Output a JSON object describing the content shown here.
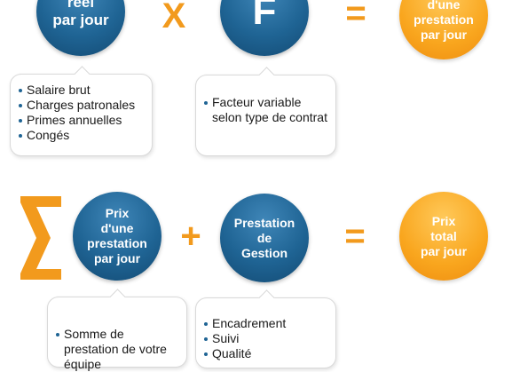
{
  "row1": {
    "circle1": {
      "lines": [
        "réel",
        "par jour"
      ]
    },
    "op_times": "X",
    "circle2": {
      "text": "F"
    },
    "op_equals": "=",
    "circle3": {
      "lines": [
        "d'une",
        "prestation",
        "par jour"
      ]
    },
    "callout1": [
      "Salaire brut",
      "Charges patronales",
      "Primes annuelles",
      "Congés"
    ],
    "callout2": [
      "Facteur variable selon type de contrat"
    ]
  },
  "row2": {
    "sigma": "Σ",
    "circle1": {
      "lines": [
        "Prix",
        "d'une",
        "prestation",
        "par jour"
      ]
    },
    "op_plus": "+",
    "circle2": {
      "lines": [
        "Prestation",
        "de",
        "Gestion"
      ]
    },
    "op_equals": "=",
    "circle3": {
      "lines": [
        "Prix",
        "total",
        "par jour"
      ]
    },
    "callout1": [
      "Somme de prestation de votre équipe"
    ],
    "callout2": [
      "Encadrement",
      "Suivi",
      "Qualité"
    ]
  },
  "colors": {
    "blue": "#1f6494",
    "orange": "#f9a61e",
    "operator": "#f29a1d"
  }
}
